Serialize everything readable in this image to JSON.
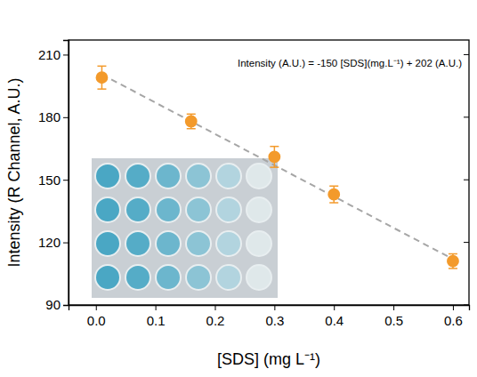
{
  "chart_data": {
    "type": "scatter",
    "x_label": "[SDS] (mg L⁻¹)",
    "y_label": "Intensity (R Channel, A.U.)",
    "annotation": "Intensity (A.U.) = -150 [SDS](mg.L⁻¹) + 202 (A.U.)",
    "x": [
      0.01,
      0.16,
      0.3,
      0.4,
      0.6
    ],
    "values": [
      199,
      178,
      161,
      143,
      111
    ],
    "errors": [
      5.5,
      3.5,
      5,
      4,
      3.5
    ],
    "fit": {
      "slope": -150,
      "intercept": 202,
      "x": [
        0.01,
        0.6
      ]
    },
    "color": "#f39a2b",
    "marker": "circle",
    "xlim": [
      -0.046,
      0.627
    ],
    "ylim": [
      90,
      217
    ],
    "xticks": [
      {
        "value": 0,
        "label": "0.0"
      },
      0.1,
      0.2,
      0.3,
      0.4,
      0.5,
      0.6
    ],
    "yticks": [
      90,
      120,
      150,
      180,
      210
    ],
    "grid": false
  }
}
